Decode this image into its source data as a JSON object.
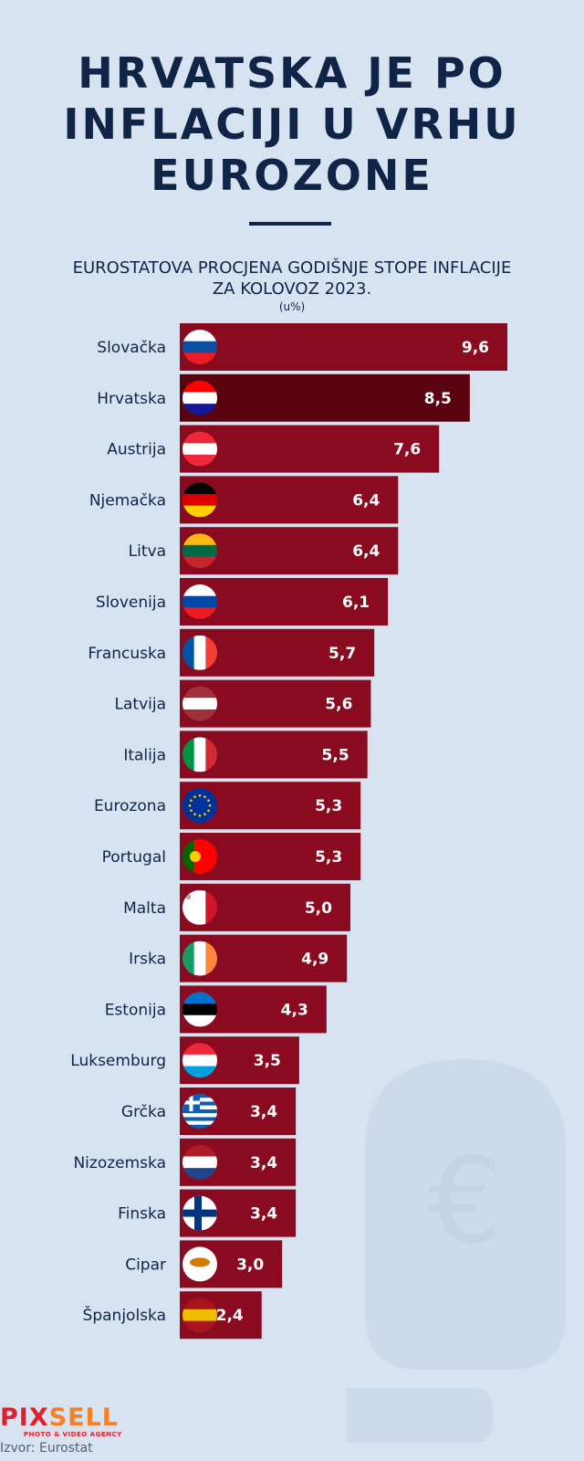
{
  "title": [
    "HRVATSKA JE PO",
    "INFLACIJI U VRHU",
    "EUROZONE"
  ],
  "colors": {
    "background": "#d7e3f0",
    "bar": "#8a0a1f",
    "highlight_bar": "#5a0310",
    "text": "#0f2447"
  },
  "chart_data": {
    "type": "bar",
    "orientation": "horizontal",
    "title": "EUROSTATOVA PROCJENA GODIŠNJE STOPE INFLACIJE ZA KOLOVOZ 2023.",
    "unit": "(u%)",
    "categories": [
      "Slovačka",
      "Hrvatska",
      "Austrija",
      "Njemačka",
      "Litva",
      "Slovenija",
      "Francuska",
      "Latvija",
      "Italija",
      "Eurozona",
      "Portugal",
      "Malta",
      "Irska",
      "Estonija",
      "Luksemburg",
      "Grčka",
      "Nizozemska",
      "Finska",
      "Cipar",
      "Španjolska"
    ],
    "values": [
      9.6,
      8.5,
      7.6,
      6.4,
      6.4,
      6.1,
      5.7,
      5.6,
      5.5,
      5.3,
      5.3,
      5.0,
      4.9,
      4.3,
      3.5,
      3.4,
      3.4,
      3.4,
      3.0,
      2.4
    ],
    "labels": [
      "9,6",
      "8,5",
      "7,6",
      "6,4",
      "6,4",
      "6,1",
      "5,7",
      "5,6",
      "5,5",
      "5,3",
      "5,3",
      "5,0",
      "4,9",
      "4,3",
      "3,5",
      "3,4",
      "3,4",
      "3,4",
      "3,0",
      "2,4"
    ],
    "highlight": "Hrvatska",
    "flag_icons": [
      "flag-slovakia",
      "flag-croatia",
      "flag-austria",
      "flag-germany",
      "flag-lithuania",
      "flag-slovenia",
      "flag-france",
      "flag-latvia",
      "flag-italy",
      "flag-eu",
      "flag-portugal",
      "flag-malta",
      "flag-ireland",
      "flag-estonia",
      "flag-luxembourg",
      "flag-greece",
      "flag-netherlands",
      "flag-finland",
      "flag-cyprus",
      "flag-spain"
    ],
    "xlim": [
      0,
      9.6
    ],
    "grid": false,
    "legend": "none"
  },
  "logo": {
    "main_a": "PIX",
    "main_b": "SELL",
    "sub": "PHOTO & VIDEO AGENCY"
  },
  "source": "Izvor: Eurostat"
}
